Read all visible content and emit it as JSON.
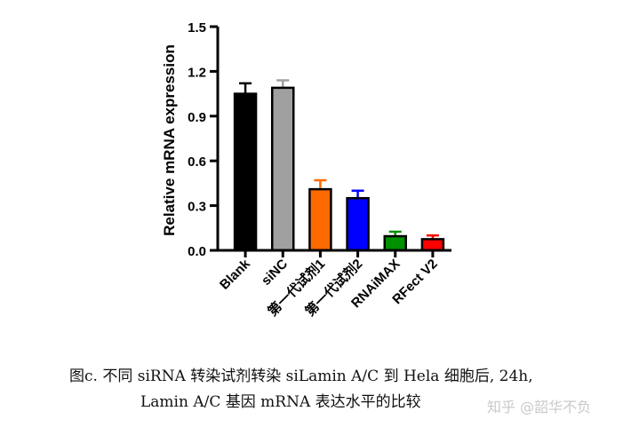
{
  "chart_data": {
    "type": "bar",
    "ylabel": "Relative mRNA expression",
    "ylim": [
      0,
      1.5
    ],
    "yticks": [
      "0.0",
      "0.3",
      "0.6",
      "0.9",
      "1.2",
      "1.5"
    ],
    "categories": [
      "Blank",
      "siNC",
      "第一代试剂1",
      "第一代试剂2",
      "RNAiMAX",
      "RFect V2"
    ],
    "values": [
      1.05,
      1.09,
      0.41,
      0.35,
      0.095,
      0.075
    ],
    "errors": [
      0.07,
      0.05,
      0.06,
      0.05,
      0.03,
      0.025
    ],
    "colors": [
      "#000000",
      "#a0a0a0",
      "#ff6a00",
      "#0000ff",
      "#009000",
      "#ff0000"
    ],
    "grid": false,
    "legend": "none"
  },
  "caption": {
    "line1": "图c.  不同 siRNA 转染试剂转染 siLamin A/C 到 Hela 细胞后, 24h,",
    "line2": "Lamin A/C 基因 mRNA 表达水平的比较"
  },
  "watermark": "知乎 @韶华不负"
}
